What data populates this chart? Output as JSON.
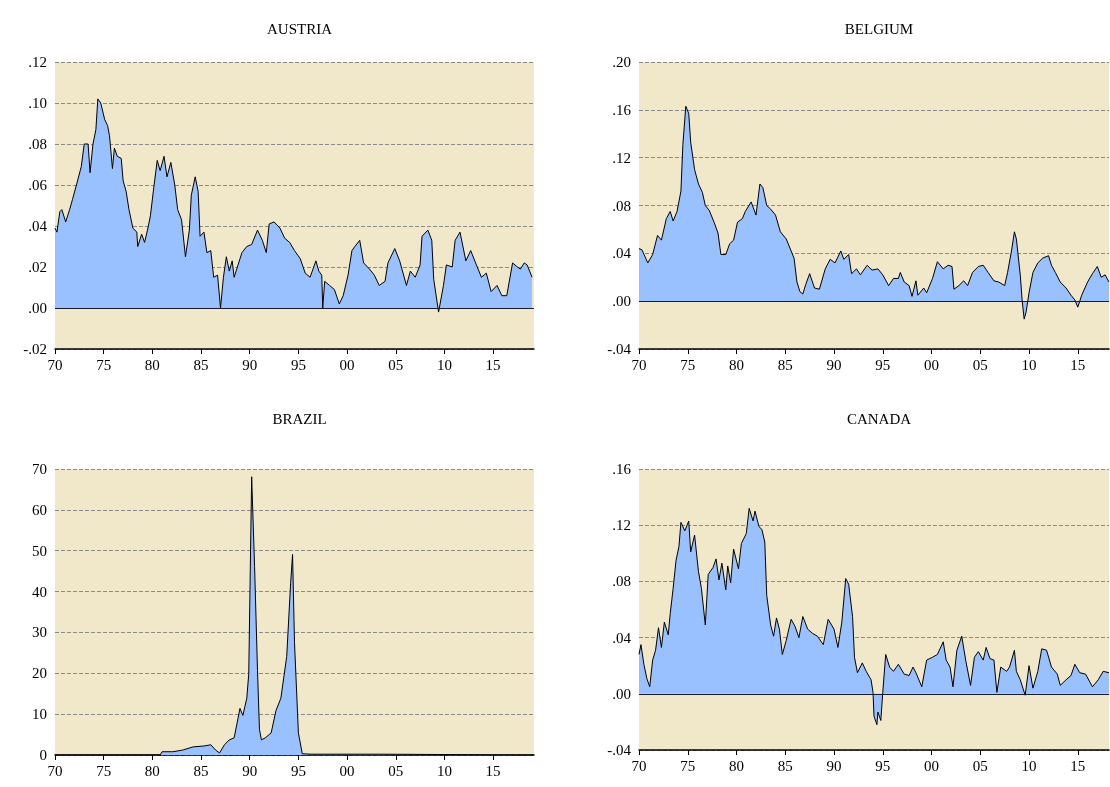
{
  "chart_data": [
    {
      "type": "area",
      "title": "AUSTRIA",
      "xlim": [
        1970,
        2019.2
      ],
      "ylim": [
        -0.02,
        0.12
      ],
      "grid": "y",
      "xticks": [
        {
          "value": 1970,
          "label": "70"
        },
        {
          "value": 1975,
          "label": "75"
        },
        {
          "value": 1980,
          "label": "80"
        },
        {
          "value": 1985,
          "label": "85"
        },
        {
          "value": 1990,
          "label": "90"
        },
        {
          "value": 1995,
          "label": "95"
        },
        {
          "value": 2000,
          "label": "00"
        },
        {
          "value": 2005,
          "label": "05"
        },
        {
          "value": 2010,
          "label": "10"
        },
        {
          "value": 2015,
          "label": "15"
        }
      ],
      "yticks": [
        {
          "value": -0.02,
          "label": "-.02"
        },
        {
          "value": 0,
          "label": ".00"
        },
        {
          "value": 0.02,
          "label": ".02"
        },
        {
          "value": 0.04,
          "label": ".04"
        },
        {
          "value": 0.06,
          "label": ".06"
        },
        {
          "value": 0.08,
          "label": ".08"
        },
        {
          "value": 0.1,
          "label": ".10"
        },
        {
          "value": 0.12,
          "label": ".12"
        }
      ],
      "ref_lines": [
        {
          "axis": "y",
          "value": 0,
          "color": "#1a1a2e"
        }
      ],
      "x": [
        1970,
        1970.2,
        1970.5,
        1970.7,
        1971.1,
        1971.5,
        1971.8,
        1972.2,
        1972.7,
        1973,
        1973.4,
        1973.6,
        1973.9,
        1974.2,
        1974.4,
        1974.7,
        1975.1,
        1975.4,
        1975.6,
        1975.9,
        1976.1,
        1976.4,
        1976.8,
        1977,
        1977.3,
        1977.6,
        1978,
        1978.4,
        1978.5,
        1978.9,
        1979.2,
        1979.5,
        1979.8,
        1980.1,
        1980.5,
        1980.8,
        1981.2,
        1981.5,
        1981.9,
        1982.3,
        1982.6,
        1983,
        1983.4,
        1983.8,
        1984,
        1984.4,
        1984.7,
        1984.9,
        1985.3,
        1985.6,
        1986,
        1986.3,
        1986.7,
        1987,
        1987.3,
        1987.6,
        1987.9,
        1988.2,
        1988.4,
        1988.8,
        1989.2,
        1989.7,
        1990.2,
        1990.8,
        1991.3,
        1991.7,
        1992,
        1992.5,
        1993.1,
        1993.6,
        1994.1,
        1994.6,
        1995.2,
        1995.7,
        1996.2,
        1996.8,
        1997.1,
        1997.4,
        1997.5,
        1997.7,
        1998.2,
        1998.7,
        1999.2,
        1999.6,
        2000.1,
        2000.5,
        2000.8,
        2001.3,
        2001.7,
        2002.3,
        2002.8,
        2003.3,
        2003.9,
        2004.2,
        2004.9,
        2005.4,
        2006.1,
        2006.5,
        2007,
        2007.5,
        2007.7,
        2008.3,
        2008.7,
        2008.9,
        2009.4,
        2009.9,
        2010.2,
        2010.8,
        2011.1,
        2011.6,
        2012.2,
        2012.7,
        2013.2,
        2013.8,
        2014.3,
        2014.8,
        2015.4,
        2015.9,
        2016.4,
        2017,
        2017.5,
        2017.8,
        2018.2,
        2018.5,
        2019
      ],
      "series": [
        {
          "color": "#99c0ff",
          "values": [
            0.039,
            0.037,
            0.047,
            0.048,
            0.042,
            0.048,
            0.053,
            0.06,
            0.069,
            0.08,
            0.08,
            0.066,
            0.08,
            0.087,
            0.102,
            0.1,
            0.092,
            0.089,
            0.084,
            0.068,
            0.078,
            0.074,
            0.073,
            0.062,
            0.057,
            0.048,
            0.039,
            0.037,
            0.03,
            0.036,
            0.032,
            0.038,
            0.045,
            0.057,
            0.072,
            0.067,
            0.074,
            0.064,
            0.071,
            0.06,
            0.048,
            0.043,
            0.025,
            0.038,
            0.055,
            0.064,
            0.057,
            0.035,
            0.037,
            0.027,
            0.028,
            0.015,
            0.016,
            0,
            0.015,
            0.025,
            0.018,
            0.023,
            0.015,
            0.021,
            0.027,
            0.03,
            0.031,
            0.038,
            0.033,
            0.027,
            0.041,
            0.042,
            0.039,
            0.034,
            0.032,
            0.028,
            0.024,
            0.017,
            0.015,
            0.023,
            0.018,
            0.016,
            0,
            0.013,
            0.011,
            0.009,
            0.002,
            0.006,
            0.016,
            0.028,
            0.03,
            0.033,
            0.022,
            0.019,
            0.016,
            0.011,
            0.013,
            0.022,
            0.029,
            0.023,
            0.011,
            0.018,
            0.015,
            0.021,
            0.035,
            0.038,
            0.033,
            0.014,
            -0.002,
            0.011,
            0.021,
            0.02,
            0.033,
            0.037,
            0.023,
            0.028,
            0.022,
            0.015,
            0.017,
            0.008,
            0.011,
            0.006,
            0.006,
            0.022,
            0.02,
            0.019,
            0.022,
            0.021,
            0.015
          ]
        }
      ]
    },
    {
      "type": "area",
      "title": "BELGIUM",
      "xlim": [
        1970,
        2018.2
      ],
      "ylim": [
        -0.04,
        0.2
      ],
      "grid": "y",
      "xticks": [
        {
          "value": 1970,
          "label": "70"
        },
        {
          "value": 1975,
          "label": "75"
        },
        {
          "value": 1980,
          "label": "80"
        },
        {
          "value": 1985,
          "label": "85"
        },
        {
          "value": 1990,
          "label": "90"
        },
        {
          "value": 1995,
          "label": "95"
        },
        {
          "value": 2000,
          "label": "00"
        },
        {
          "value": 2005,
          "label": "05"
        },
        {
          "value": 2010,
          "label": "10"
        },
        {
          "value": 2015,
          "label": "15"
        }
      ],
      "yticks": [
        {
          "value": -0.04,
          "label": "-.04"
        },
        {
          "value": 0,
          "label": ".00"
        },
        {
          "value": 0.04,
          "label": ".04"
        },
        {
          "value": 0.08,
          "label": ".08"
        },
        {
          "value": 0.12,
          "label": ".12"
        },
        {
          "value": 0.16,
          "label": ".16"
        },
        {
          "value": 0.2,
          "label": ".20"
        }
      ],
      "ref_lines": [
        {
          "axis": "y",
          "value": 0,
          "color": "#1a1a2e"
        }
      ],
      "x": [
        1970,
        1970.3,
        1970.9,
        1971.4,
        1971.9,
        1972.3,
        1972.8,
        1973.2,
        1973.5,
        1973.9,
        1974.3,
        1974.5,
        1974.8,
        1975.1,
        1975.3,
        1975.7,
        1976.1,
        1976.5,
        1976.8,
        1977.2,
        1977.7,
        1978.1,
        1978.4,
        1978.9,
        1979.3,
        1979.7,
        1980.1,
        1980.6,
        1980.9,
        1981.5,
        1982,
        1982.4,
        1982.7,
        1983.1,
        1983.5,
        1984,
        1984.5,
        1985.1,
        1985.6,
        1985.9,
        1986.2,
        1986.5,
        1986.8,
        1987.1,
        1987.5,
        1988,
        1988.5,
        1989.1,
        1989.6,
        1990.1,
        1990.7,
        1991,
        1991.5,
        1991.8,
        1992.3,
        1992.7,
        1993.4,
        1993.9,
        1994.5,
        1995,
        1995.6,
        1996.1,
        1996.6,
        1996.8,
        1997.2,
        1997.7,
        1998,
        1998.4,
        1998.6,
        1999.2,
        1999.5,
        2000.1,
        2000.6,
        2001.2,
        2001.7,
        2002.1,
        2002.3,
        2002.8,
        2003.3,
        2003.7,
        2004.2,
        2004.8,
        2005.3,
        2005.8,
        2006.4,
        2006.9,
        2007.5,
        2007.8,
        2008.2,
        2008.5,
        2008.7,
        2009.1,
        2009.3,
        2009.5,
        2009.7,
        2010,
        2010.4,
        2010.9,
        2011.4,
        2012,
        2012.3,
        2012.7,
        2013.2,
        2013.8,
        2014.3,
        2014.7,
        2015,
        2015.4,
        2016,
        2016.5,
        2017,
        2017.4,
        2017.8,
        2018.2
      ],
      "series": [
        {
          "color": "#99c0ff",
          "values": [
            0.044,
            0.043,
            0.032,
            0.039,
            0.055,
            0.051,
            0.069,
            0.075,
            0.067,
            0.075,
            0.092,
            0.131,
            0.163,
            0.157,
            0.133,
            0.11,
            0.098,
            0.091,
            0.08,
            0.076,
            0.066,
            0.057,
            0.039,
            0.039,
            0.048,
            0.051,
            0.066,
            0.069,
            0.075,
            0.083,
            0.072,
            0.098,
            0.095,
            0.08,
            0.077,
            0.072,
            0.058,
            0.052,
            0.042,
            0.036,
            0.016,
            0.008,
            0.006,
            0.014,
            0.023,
            0.011,
            0.01,
            0.027,
            0.035,
            0.032,
            0.042,
            0.035,
            0.039,
            0.023,
            0.027,
            0.022,
            0.03,
            0.026,
            0.027,
            0.022,
            0.013,
            0.019,
            0.019,
            0.024,
            0.016,
            0.013,
            0.004,
            0.017,
            0.005,
            0.011,
            0.007,
            0.019,
            0.033,
            0.027,
            0.03,
            0.029,
            0.01,
            0.013,
            0.017,
            0.013,
            0.024,
            0.029,
            0.03,
            0.024,
            0.017,
            0.016,
            0.013,
            0.024,
            0.042,
            0.058,
            0.052,
            0.022,
            0,
            -0.015,
            -0.009,
            0.007,
            0.024,
            0.032,
            0.036,
            0.038,
            0.03,
            0.024,
            0.016,
            0.011,
            0.005,
            0.001,
            -0.005,
            0.005,
            0.016,
            0.023,
            0.029,
            0.02,
            0.022,
            0.016
          ]
        }
      ]
    },
    {
      "type": "area",
      "title": "BRAZIL",
      "xlim": [
        1970,
        2019.2
      ],
      "ylim": [
        0,
        70
      ],
      "grid": "y",
      "xticks": [
        {
          "value": 1970,
          "label": "70"
        },
        {
          "value": 1975,
          "label": "75"
        },
        {
          "value": 1980,
          "label": "80"
        },
        {
          "value": 1985,
          "label": "85"
        },
        {
          "value": 1990,
          "label": "90"
        },
        {
          "value": 1995,
          "label": "95"
        },
        {
          "value": 2000,
          "label": "00"
        },
        {
          "value": 2005,
          "label": "05"
        },
        {
          "value": 2010,
          "label": "10"
        },
        {
          "value": 2015,
          "label": "15"
        }
      ],
      "yticks": [
        0,
        10,
        20,
        30,
        40,
        50,
        60,
        70
      ],
      "x": [
        1970,
        1980.8,
        1981,
        1982.1,
        1983.1,
        1984.2,
        1985.3,
        1986,
        1986.5,
        1986.9,
        1987.4,
        1987.9,
        1988.4,
        1989,
        1989.3,
        1989.7,
        1989.9,
        1990.2,
        1990.5,
        1990.8,
        1991,
        1991.2,
        1991.6,
        1992.2,
        1992.7,
        1993.2,
        1993.8,
        1994.2,
        1994.4,
        1994.6,
        1995,
        1995.4,
        1996.2,
        2003.3,
        2019.2
      ],
      "series": [
        {
          "color": "#99c0ff",
          "values": [
            0,
            0,
            0.8,
            0.8,
            1.2,
            2,
            2.2,
            2.5,
            1.2,
            0.5,
            2.5,
            3.7,
            4.2,
            11.4,
            9.7,
            13.9,
            19.8,
            68.1,
            46.1,
            20.7,
            6.3,
            3.7,
            4.2,
            5.4,
            10.9,
            13.9,
            24.1,
            41.9,
            49.1,
            27.5,
            5.4,
            0.3,
            0.2,
            0.2,
            0
          ]
        }
      ]
    },
    {
      "type": "area",
      "title": "CANADA",
      "xlim": [
        1970,
        2018.2
      ],
      "ylim": [
        -0.04,
        0.16
      ],
      "grid": "y",
      "xticks": [
        {
          "value": 1970,
          "label": "70"
        },
        {
          "value": 1975,
          "label": "75"
        },
        {
          "value": 1980,
          "label": "80"
        },
        {
          "value": 1985,
          "label": "85"
        },
        {
          "value": 1990,
          "label": "90"
        },
        {
          "value": 1995,
          "label": "95"
        },
        {
          "value": 2000,
          "label": "00"
        },
        {
          "value": 2005,
          "label": "05"
        },
        {
          "value": 2010,
          "label": "10"
        },
        {
          "value": 2015,
          "label": "15"
        }
      ],
      "yticks": [
        {
          "value": -0.04,
          "label": "-.04"
        },
        {
          "value": 0,
          "label": ".00"
        },
        {
          "value": 0.04,
          "label": ".04"
        },
        {
          "value": 0.08,
          "label": ".08"
        },
        {
          "value": 0.12,
          "label": ".12"
        },
        {
          "value": 0.16,
          "label": ".16"
        }
      ],
      "ref_lines": [
        {
          "axis": "y",
          "value": 0,
          "color": "#1a1a2e"
        }
      ],
      "x": [
        1970,
        1970.2,
        1970.5,
        1970.8,
        1971.1,
        1971.4,
        1971.7,
        1972,
        1972.3,
        1972.6,
        1973,
        1973.2,
        1973.5,
        1973.8,
        1974.1,
        1974.3,
        1974.7,
        1975.1,
        1975.3,
        1975.7,
        1976.1,
        1976.4,
        1976.8,
        1977.1,
        1977.6,
        1977.9,
        1978.2,
        1978.5,
        1978.9,
        1979.1,
        1979.4,
        1979.7,
        1980.2,
        1980.5,
        1981,
        1981.3,
        1981.7,
        1981.9,
        1982.3,
        1982.6,
        1982.9,
        1983.1,
        1983.5,
        1983.8,
        1984.1,
        1984.4,
        1984.7,
        1985.1,
        1985.6,
        1986,
        1986.4,
        1986.8,
        1987.3,
        1987.8,
        1988.3,
        1988.9,
        1989.4,
        1990,
        1990.4,
        1990.8,
        1991.2,
        1991.5,
        1991.9,
        1992.1,
        1992.4,
        1992.9,
        1993.3,
        1993.8,
        1994,
        1994.1,
        1994.4,
        1994.5,
        1994.8,
        1995,
        1995.3,
        1995.7,
        1996.1,
        1996.6,
        1997.2,
        1997.7,
        1998.1,
        1998.4,
        1999,
        1999.5,
        2000.1,
        2000.6,
        2001.2,
        2001.5,
        2001.9,
        2002.2,
        2002.6,
        2003.1,
        2003.5,
        2004,
        2004.4,
        2004.8,
        2005.3,
        2005.6,
        2006,
        2006.4,
        2006.7,
        2007.1,
        2007.7,
        2008,
        2008.5,
        2008.7,
        2009.1,
        2009.6,
        2010,
        2010.4,
        2010.9,
        2011.3,
        2011.8,
        2012.3,
        2012.9,
        2013.2,
        2013.8,
        2014.3,
        2014.7,
        2015.2,
        2015.8,
        2016.5,
        2017.1,
        2017.6,
        2018.2
      ],
      "series": [
        {
          "color": "#99c0ff",
          "values": [
            0.028,
            0.035,
            0.021,
            0.011,
            0.005,
            0.024,
            0.031,
            0.047,
            0.033,
            0.051,
            0.042,
            0.057,
            0.075,
            0.095,
            0.105,
            0.122,
            0.116,
            0.123,
            0.101,
            0.113,
            0.087,
            0.075,
            0.049,
            0.085,
            0.09,
            0.096,
            0.081,
            0.093,
            0.074,
            0.091,
            0.079,
            0.103,
            0.089,
            0.107,
            0.114,
            0.132,
            0.123,
            0.13,
            0.119,
            0.117,
            0.108,
            0.07,
            0.049,
            0.041,
            0.054,
            0.046,
            0.028,
            0.038,
            0.053,
            0.048,
            0.04,
            0.055,
            0.046,
            0.043,
            0.041,
            0.035,
            0.053,
            0.046,
            0.033,
            0.051,
            0.082,
            0.078,
            0.055,
            0.026,
            0.015,
            0.022,
            0.016,
            0.01,
            0.001,
            -0.016,
            -0.022,
            -0.013,
            -0.019,
            0.001,
            0.028,
            0.019,
            0.016,
            0.021,
            0.014,
            0.013,
            0.019,
            0.015,
            0.005,
            0.024,
            0.026,
            0.028,
            0.037,
            0.024,
            0.019,
            0.005,
            0.031,
            0.041,
            0.024,
            0.006,
            0.026,
            0.03,
            0.024,
            0.033,
            0.025,
            0.024,
            0.001,
            0.019,
            0.016,
            0.019,
            0.031,
            0.016,
            0.01,
            -0.001,
            0.02,
            0.004,
            0.016,
            0.032,
            0.031,
            0.019,
            0.014,
            0.006,
            0.01,
            0.013,
            0.021,
            0.015,
            0.014,
            0.005,
            0.01,
            0.016,
            0.015
          ]
        }
      ]
    }
  ]
}
